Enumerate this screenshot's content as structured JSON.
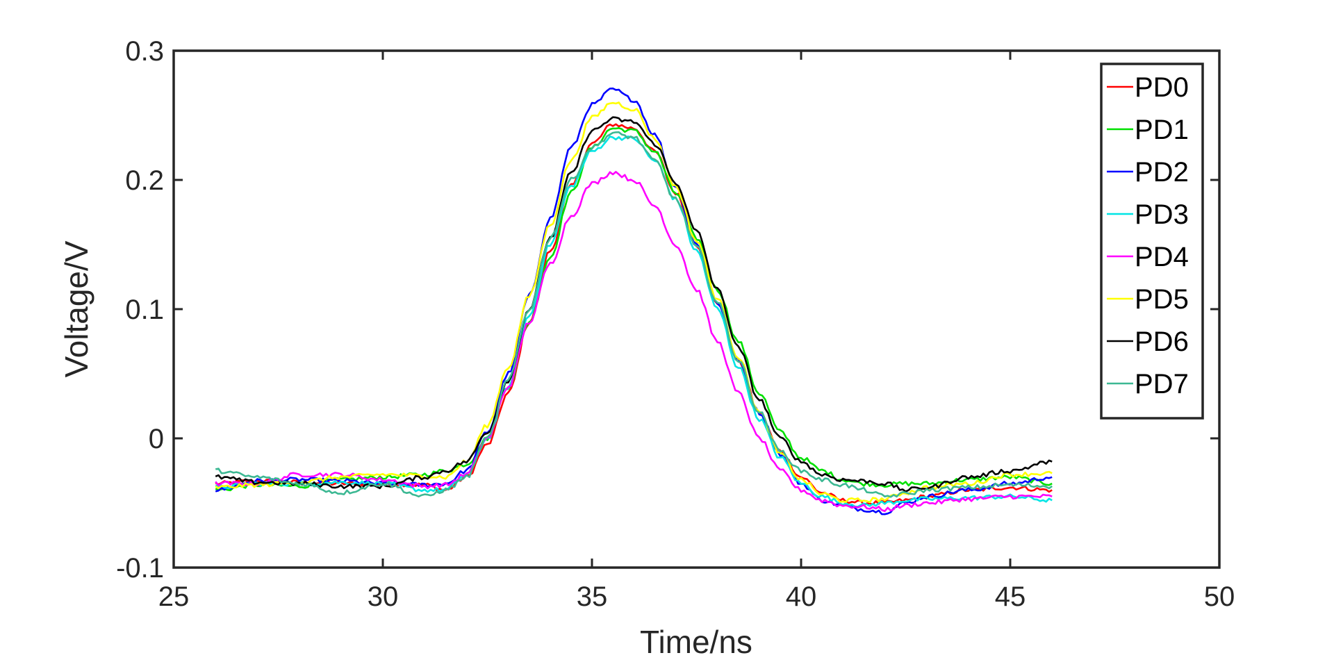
{
  "chart_data": {
    "type": "line",
    "title": "",
    "xlabel": "Time/ns",
    "ylabel": "Voltage/V",
    "xlim": [
      25,
      50
    ],
    "ylim": [
      -0.1,
      0.3
    ],
    "xticks": [
      25,
      30,
      35,
      40,
      45,
      50
    ],
    "xtick_labels": [
      "25",
      "30",
      "35",
      "40",
      "45",
      "50"
    ],
    "yticks": [
      -0.1,
      0,
      0.1,
      0.2,
      0.3
    ],
    "ytick_labels": [
      "-0.1",
      "0",
      "0.1",
      "0.2",
      "0.3"
    ],
    "grid": false,
    "legend_position": "top-right",
    "x": [
      26,
      27,
      28,
      29,
      30,
      31,
      31.5,
      32,
      32.5,
      33,
      33.5,
      34,
      34.5,
      35,
      35.5,
      36,
      36.5,
      37,
      37.5,
      38,
      38.5,
      39,
      39.5,
      40,
      40.5,
      41,
      41.5,
      42,
      42.5,
      43,
      44,
      45,
      46
    ],
    "series": [
      {
        "name": "PD0",
        "color": "#ff0000",
        "values": [
          -0.035,
          -0.033,
          -0.034,
          -0.035,
          -0.035,
          -0.036,
          -0.04,
          -0.03,
          -0.005,
          0.035,
          0.09,
          0.145,
          0.195,
          0.228,
          0.243,
          0.24,
          0.222,
          0.19,
          0.15,
          0.105,
          0.06,
          0.02,
          -0.01,
          -0.03,
          -0.042,
          -0.048,
          -0.05,
          -0.05,
          -0.048,
          -0.045,
          -0.04,
          -0.038,
          -0.04
        ]
      },
      {
        "name": "PD1",
        "color": "#00e000",
        "values": [
          -0.04,
          -0.036,
          -0.037,
          -0.032,
          -0.03,
          -0.028,
          -0.025,
          -0.02,
          0.0,
          0.04,
          0.09,
          0.14,
          0.19,
          0.225,
          0.24,
          0.238,
          0.222,
          0.19,
          0.155,
          0.115,
          0.075,
          0.035,
          0.005,
          -0.015,
          -0.025,
          -0.032,
          -0.035,
          -0.036,
          -0.035,
          -0.035,
          -0.032,
          -0.03,
          -0.035
        ]
      },
      {
        "name": "PD2",
        "color": "#0000ff",
        "values": [
          -0.04,
          -0.033,
          -0.032,
          -0.033,
          -0.035,
          -0.036,
          -0.035,
          -0.025,
          0.005,
          0.05,
          0.11,
          0.17,
          0.225,
          0.258,
          0.27,
          0.262,
          0.235,
          0.195,
          0.15,
          0.105,
          0.06,
          0.02,
          -0.012,
          -0.035,
          -0.048,
          -0.052,
          -0.055,
          -0.057,
          -0.05,
          -0.045,
          -0.04,
          -0.035,
          -0.03
        ]
      },
      {
        "name": "PD3",
        "color": "#00e5e5",
        "values": [
          -0.038,
          -0.035,
          -0.035,
          -0.034,
          -0.035,
          -0.04,
          -0.04,
          -0.028,
          0.0,
          0.04,
          0.095,
          0.15,
          0.195,
          0.222,
          0.233,
          0.232,
          0.215,
          0.185,
          0.145,
          0.1,
          0.055,
          0.015,
          -0.015,
          -0.035,
          -0.045,
          -0.05,
          -0.052,
          -0.05,
          -0.048,
          -0.047,
          -0.046,
          -0.045,
          -0.048
        ]
      },
      {
        "name": "PD4",
        "color": "#ff00ff",
        "values": [
          -0.035,
          -0.035,
          -0.028,
          -0.028,
          -0.032,
          -0.037,
          -0.036,
          -0.028,
          0.0,
          0.04,
          0.09,
          0.135,
          0.172,
          0.197,
          0.206,
          0.2,
          0.18,
          0.15,
          0.115,
          0.075,
          0.035,
          0.0,
          -0.025,
          -0.04,
          -0.048,
          -0.052,
          -0.053,
          -0.055,
          -0.052,
          -0.05,
          -0.047,
          -0.045,
          -0.045
        ]
      },
      {
        "name": "PD5",
        "color": "#ffff00",
        "values": [
          -0.038,
          -0.036,
          -0.034,
          -0.03,
          -0.028,
          -0.029,
          -0.03,
          -0.018,
          0.01,
          0.055,
          0.11,
          0.165,
          0.215,
          0.248,
          0.26,
          0.255,
          0.232,
          0.195,
          0.153,
          0.108,
          0.063,
          0.02,
          -0.012,
          -0.032,
          -0.043,
          -0.048,
          -0.048,
          -0.047,
          -0.042,
          -0.038,
          -0.035,
          -0.028,
          -0.027
        ]
      },
      {
        "name": "PD6",
        "color": "#000000",
        "values": [
          -0.03,
          -0.034,
          -0.035,
          -0.037,
          -0.037,
          -0.03,
          -0.025,
          -0.018,
          0.005,
          0.045,
          0.1,
          0.155,
          0.205,
          0.238,
          0.247,
          0.245,
          0.228,
          0.198,
          0.16,
          0.115,
          0.07,
          0.03,
          0.0,
          -0.018,
          -0.028,
          -0.032,
          -0.033,
          -0.035,
          -0.04,
          -0.038,
          -0.03,
          -0.025,
          -0.018
        ]
      },
      {
        "name": "PD7",
        "color": "#3cb893",
        "values": [
          -0.025,
          -0.03,
          -0.035,
          -0.042,
          -0.035,
          -0.045,
          -0.04,
          -0.03,
          0.0,
          0.045,
          0.1,
          0.155,
          0.2,
          0.225,
          0.236,
          0.233,
          0.215,
          0.185,
          0.148,
          0.105,
          0.06,
          0.02,
          -0.01,
          -0.025,
          -0.032,
          -0.036,
          -0.04,
          -0.045,
          -0.043,
          -0.04,
          -0.038,
          -0.036,
          -0.037
        ]
      }
    ]
  }
}
